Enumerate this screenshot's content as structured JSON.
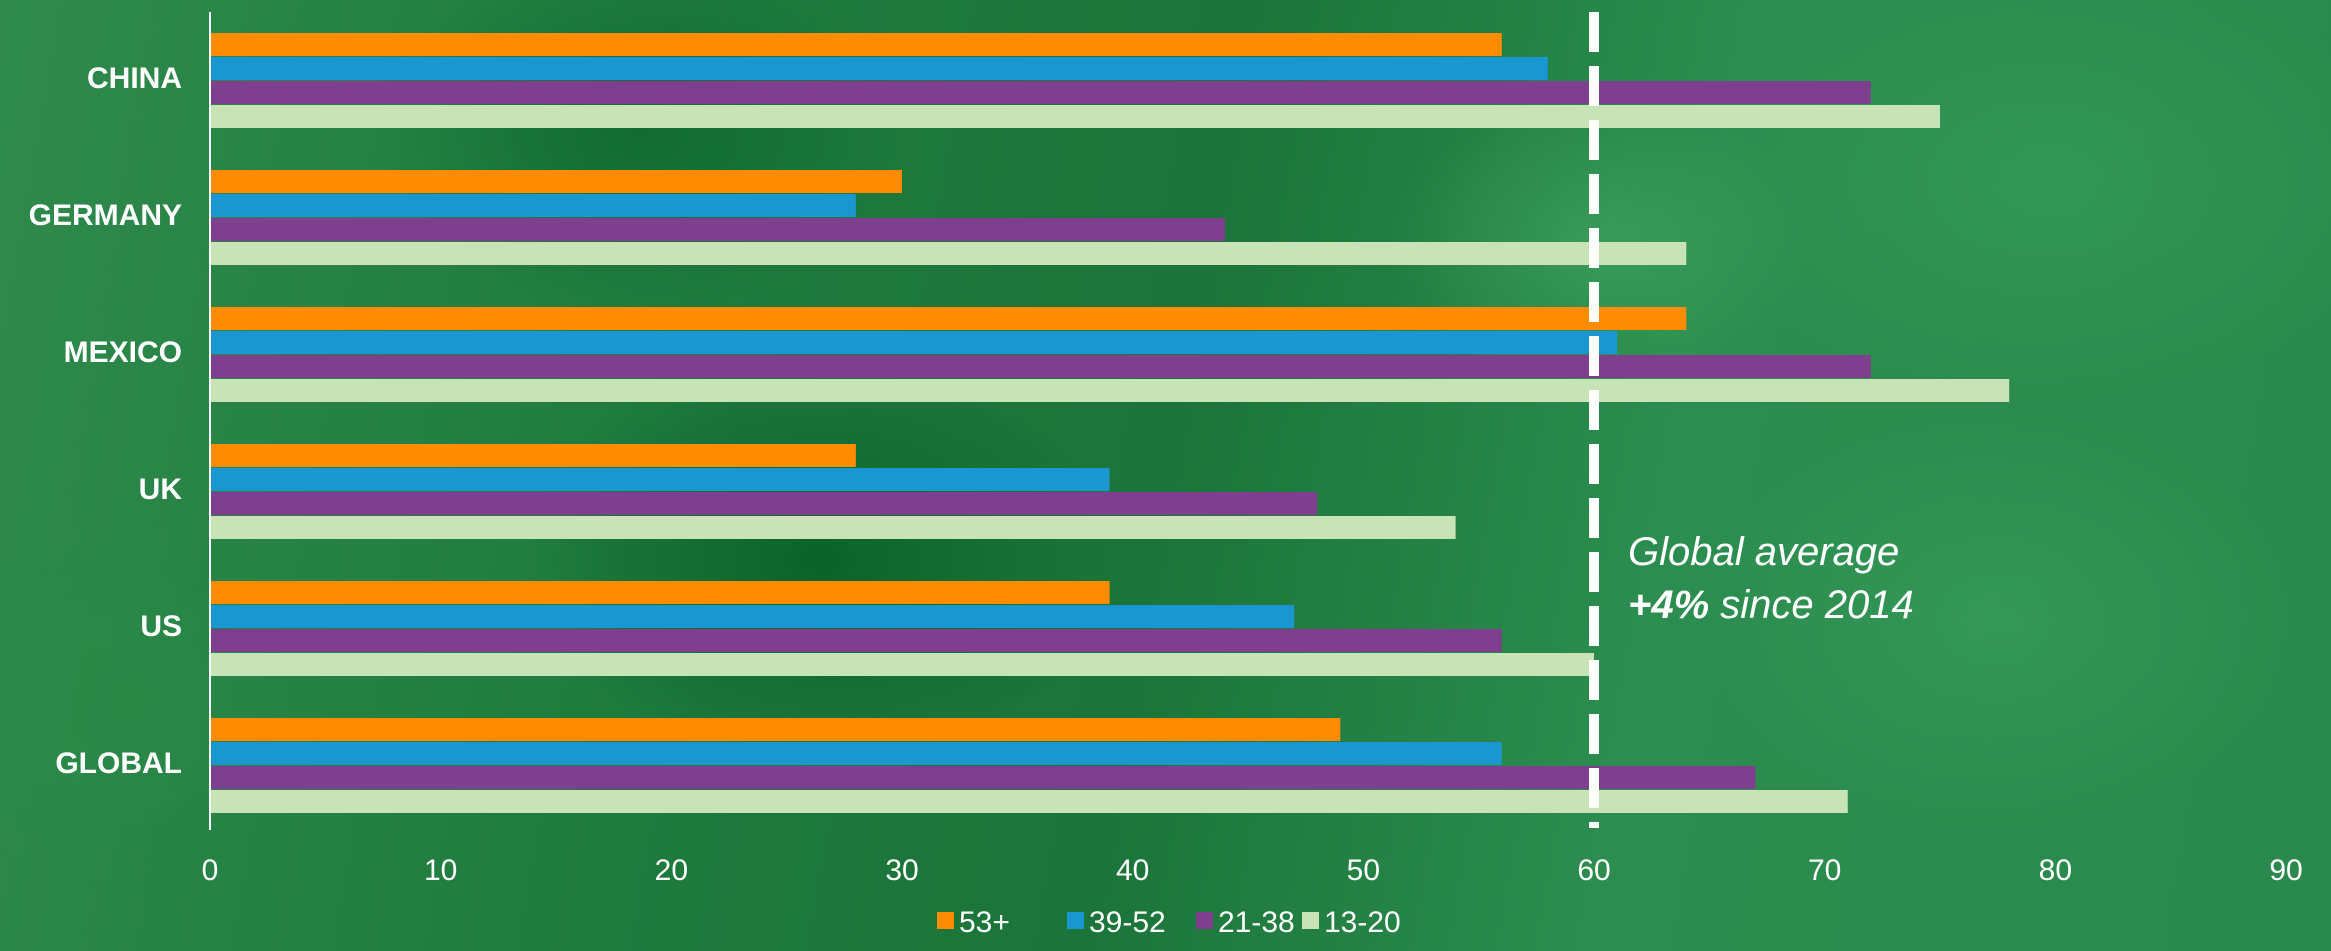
{
  "chart_data": {
    "type": "bar",
    "orientation": "horizontal",
    "categories": [
      "CHINA",
      "GERMANY",
      "MEXICO",
      "UK",
      "US",
      "GLOBAL"
    ],
    "series": [
      {
        "name": "53+",
        "color": "#ff8c00",
        "values": [
          56,
          30,
          64,
          28,
          39,
          49
        ]
      },
      {
        "name": "39-52",
        "color": "#1a96d1",
        "values": [
          58,
          28,
          61,
          39,
          47,
          56
        ]
      },
      {
        "name": "21-38",
        "color": "#7e3f8f",
        "values": [
          72,
          44,
          72,
          48,
          56,
          67
        ]
      },
      {
        "name": "13-20",
        "color": "#c8e3b6",
        "values": [
          75,
          64,
          78,
          54,
          60,
          71
        ]
      }
    ],
    "xlim": [
      0,
      90
    ],
    "xticks": [
      "0",
      "10",
      "20",
      "30",
      "40",
      "50",
      "60",
      "70",
      "80",
      "90"
    ],
    "reference_line": {
      "value": 60,
      "style": "dashed",
      "color": "#ffffff"
    },
    "annotation": {
      "line1": "Global average",
      "line2_bold": "+4%",
      "line2_rest": " since 2014"
    },
    "legend_position": "bottom-center",
    "grid": false
  }
}
